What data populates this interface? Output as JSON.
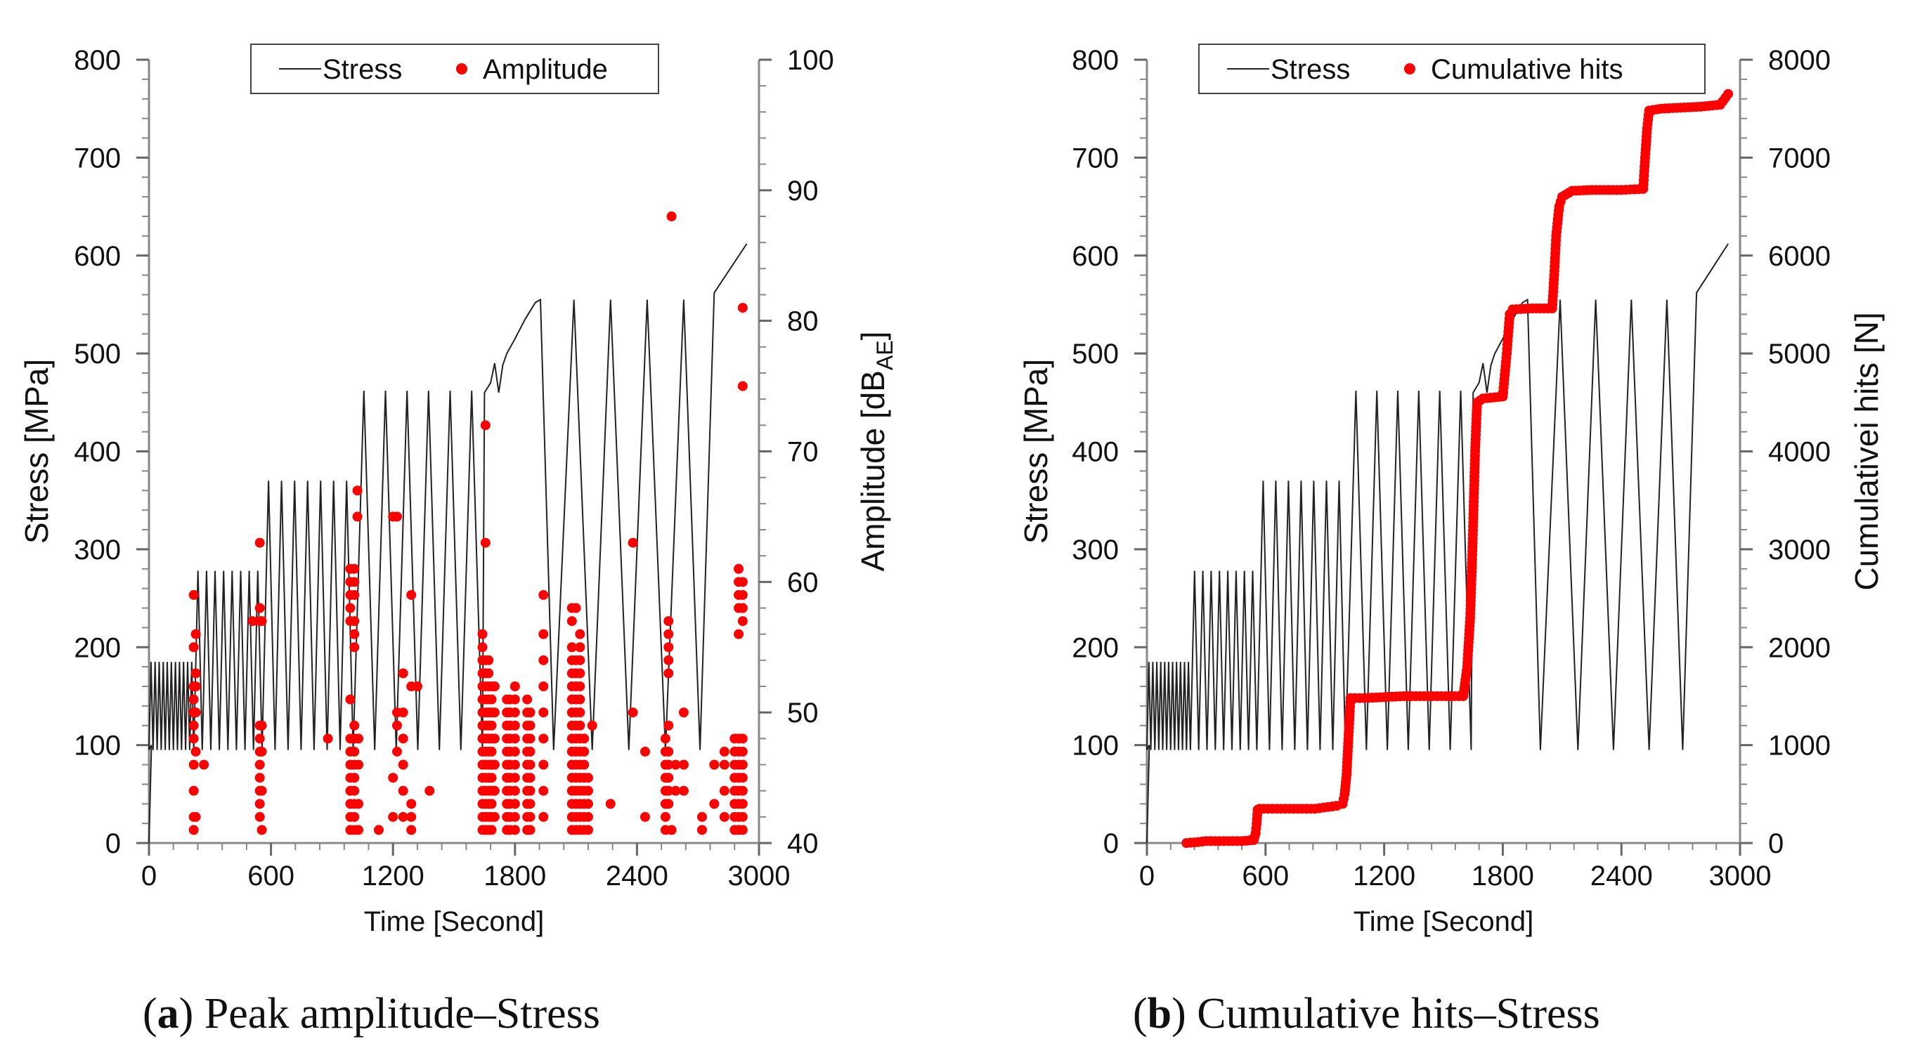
{
  "chart_data": [
    {
      "type": "line+scatter",
      "panel": "a",
      "caption": {
        "open": "(",
        "letter": "a",
        "close": ")",
        "text": " Peak amplitude–Stress"
      },
      "xlabel": "Time [Second]",
      "ylabel": "Stress [MPa]",
      "y2label_main": "Amplitude [dB",
      "y2label_sub": "AE",
      "y2label_end": "]",
      "xlim": [
        0,
        3000
      ],
      "ylim": [
        0,
        800
      ],
      "y2lim": [
        40,
        100
      ],
      "xticks": [
        0,
        600,
        1200,
        1800,
        2400,
        3000
      ],
      "yticks": [
        0,
        100,
        200,
        300,
        400,
        500,
        600,
        700,
        800
      ],
      "y2ticks": [
        40,
        50,
        60,
        70,
        80,
        90,
        100
      ],
      "legend": {
        "position": "top-center",
        "entries": [
          "Stress",
          "Amplitude"
        ]
      },
      "colors": {
        "stress": "#222222",
        "scatter": "#ff0000"
      },
      "stress_blocks": [
        {
          "start": 0,
          "n": 11,
          "period": 20,
          "min": 95,
          "max": 185
        },
        {
          "start": 220,
          "n": 8,
          "period": 42,
          "min": 95,
          "max": 278
        },
        {
          "start": 556,
          "n": 7,
          "period": 64,
          "min": 95,
          "max": 370
        },
        {
          "start": 1004,
          "n": 6,
          "period": 106,
          "min": 95,
          "max": 462
        }
      ],
      "stress_extra": [
        [
          1640,
          95
        ],
        [
          1650,
          460
        ],
        [
          1680,
          470
        ],
        [
          1700,
          490
        ],
        [
          1720,
          460
        ],
        [
          1740,
          488
        ],
        [
          1760,
          500
        ],
        [
          1800,
          515
        ],
        [
          1850,
          535
        ],
        [
          1900,
          552
        ],
        [
          1925,
          555
        ],
        [
          1990,
          95
        ],
        [
          2090,
          555
        ],
        [
          2180,
          95
        ],
        [
          2270,
          555
        ],
        [
          2360,
          95
        ],
        [
          2450,
          555
        ],
        [
          2540,
          95
        ],
        [
          2630,
          555
        ],
        [
          2710,
          95
        ],
        [
          2780,
          562
        ],
        [
          2940,
          612
        ]
      ],
      "amplitude": {
        "columns": [
          {
            "x": 220,
            "values": [
              41,
              42,
              44,
              46,
              48,
              49,
              50,
              51,
              52,
              55,
              59
            ]
          },
          {
            "x": 230,
            "values": [
              42,
              47,
              50,
              52,
              53,
              56
            ]
          },
          {
            "x": 270,
            "values": [
              46
            ]
          },
          {
            "x": 510,
            "values": [
              57
            ]
          },
          {
            "x": 545,
            "values": [
              42,
              43,
              44,
              45,
              46,
              47,
              48,
              49,
              57,
              58,
              63
            ]
          },
          {
            "x": 555,
            "values": [
              41,
              44,
              47,
              49,
              57
            ]
          },
          {
            "x": 880,
            "values": [
              48
            ]
          },
          {
            "x": 990,
            "values": [
              41,
              42,
              43,
              44,
              45,
              46,
              47,
              48,
              51,
              57,
              58,
              59,
              60,
              61
            ]
          },
          {
            "x": 1010,
            "values": [
              41,
              42,
              43,
              44,
              45,
              46,
              47,
              48,
              49,
              55,
              56,
              57,
              59,
              60,
              61
            ]
          },
          {
            "x": 1025,
            "values": [
              65,
              67
            ]
          },
          {
            "x": 1030,
            "values": [
              41,
              43,
              46,
              48
            ]
          },
          {
            "x": 1130,
            "values": [
              41
            ]
          },
          {
            "x": 1200,
            "values": [
              42,
              45,
              65
            ]
          },
          {
            "x": 1220,
            "values": [
              47,
              49,
              50,
              65
            ]
          },
          {
            "x": 1250,
            "values": [
              42,
              44,
              46,
              48,
              50,
              53
            ]
          },
          {
            "x": 1290,
            "values": [
              41,
              42,
              43,
              59,
              52
            ]
          },
          {
            "x": 1320,
            "values": [
              52
            ]
          },
          {
            "x": 1380,
            "values": [
              44
            ]
          },
          {
            "x": 1640,
            "values": [
              41,
              42,
              43,
              44,
              45,
              46,
              47,
              48,
              49,
              50,
              51,
              52,
              53,
              54,
              55,
              56
            ]
          },
          {
            "x": 1655,
            "values": [
              41,
              42,
              43,
              44,
              45,
              46,
              47,
              48,
              49,
              50,
              51,
              52,
              53,
              54,
              72,
              63
            ]
          },
          {
            "x": 1670,
            "values": [
              41,
              42,
              43,
              44,
              45,
              46,
              47,
              48,
              49,
              50,
              51,
              52,
              53,
              54
            ]
          },
          {
            "x": 1685,
            "values": [
              41,
              42,
              43,
              44,
              45,
              46,
              47,
              48,
              49,
              50,
              51,
              52
            ]
          },
          {
            "x": 1700,
            "values": [
              42,
              44,
              46,
              48,
              50,
              52
            ]
          },
          {
            "x": 1760,
            "values": [
              41,
              42,
              43,
              44,
              45,
              46,
              47,
              48,
              49,
              50,
              51
            ]
          },
          {
            "x": 1775,
            "values": [
              41,
              42,
              43,
              44,
              45,
              46,
              47,
              48,
              49,
              50,
              51
            ]
          },
          {
            "x": 1800,
            "values": [
              41,
              42,
              43,
              44,
              45,
              46,
              47,
              48,
              49,
              50,
              51,
              52
            ]
          },
          {
            "x": 1860,
            "values": [
              41,
              42,
              43,
              44,
              45,
              46,
              47,
              48,
              49,
              50,
              51
            ]
          },
          {
            "x": 1875,
            "values": [
              41,
              42,
              43,
              44,
              45,
              46,
              47,
              48,
              49,
              50
            ]
          },
          {
            "x": 1940,
            "values": [
              42,
              44,
              46,
              48,
              50,
              52,
              54,
              56,
              59
            ]
          },
          {
            "x": 2080,
            "values": [
              41,
              42,
              43,
              44,
              45,
              46,
              47,
              48,
              49,
              50,
              51,
              52,
              53,
              54,
              55,
              57,
              58
            ]
          },
          {
            "x": 2100,
            "values": [
              41,
              42,
              43,
              44,
              45,
              46,
              47,
              48,
              49,
              50,
              51,
              52,
              53,
              54,
              58
            ]
          },
          {
            "x": 2120,
            "values": [
              41,
              42,
              43,
              44,
              45,
              46,
              47,
              48,
              49,
              50,
              51,
              52,
              53,
              54,
              55,
              56
            ]
          },
          {
            "x": 2140,
            "values": [
              41,
              42,
              43,
              44,
              45,
              46,
              47,
              48
            ]
          },
          {
            "x": 2160,
            "values": [
              41,
              42,
              43,
              44,
              45
            ]
          },
          {
            "x": 2180,
            "values": [
              49
            ]
          },
          {
            "x": 2270,
            "values": [
              43
            ]
          },
          {
            "x": 2380,
            "values": [
              50,
              63
            ]
          },
          {
            "x": 2440,
            "values": [
              42,
              47
            ]
          },
          {
            "x": 2540,
            "values": [
              41,
              42,
              43,
              44,
              45,
              46,
              47,
              48
            ]
          },
          {
            "x": 2555,
            "values": [
              43,
              44,
              45,
              46,
              47,
              49,
              53,
              54,
              55,
              56,
              57
            ]
          },
          {
            "x": 2570,
            "values": [
              88,
              41
            ]
          },
          {
            "x": 2590,
            "values": [
              44,
              46
            ]
          },
          {
            "x": 2630,
            "values": [
              44,
              46,
              50
            ]
          },
          {
            "x": 2720,
            "values": [
              41,
              42
            ]
          },
          {
            "x": 2780,
            "values": [
              43,
              46
            ]
          },
          {
            "x": 2830,
            "values": [
              42,
              44,
              46,
              47
            ]
          },
          {
            "x": 2880,
            "values": [
              41,
              42,
              43,
              44,
              45,
              46,
              47,
              48
            ]
          },
          {
            "x": 2900,
            "values": [
              41,
              42,
              43,
              44,
              45,
              46,
              47,
              48,
              56,
              58,
              59,
              60,
              61
            ]
          },
          {
            "x": 2920,
            "values": [
              41,
              42,
              43,
              44,
              45,
              46,
              47,
              48,
              57,
              58,
              59,
              60,
              75,
              81
            ]
          }
        ]
      }
    },
    {
      "type": "line+scatter",
      "panel": "b",
      "caption": {
        "open": "(",
        "letter": "b",
        "close": ")",
        "text": " Cumulative hits–Stress"
      },
      "xlabel": "Time [Second]",
      "ylabel": "Stress [MPa]",
      "y2label": "Cumulativei hits [N]",
      "xlim": [
        0,
        3000
      ],
      "ylim": [
        0,
        800
      ],
      "y2lim": [
        0,
        8000
      ],
      "xticks": [
        0,
        600,
        1200,
        1800,
        2400,
        3000
      ],
      "yticks": [
        0,
        100,
        200,
        300,
        400,
        500,
        600,
        700,
        800
      ],
      "y2ticks": [
        0,
        1000,
        2000,
        3000,
        4000,
        5000,
        6000,
        7000,
        8000
      ],
      "legend": {
        "position": "top-center",
        "entries": [
          "Stress",
          "Cumulative hits"
        ]
      },
      "colors": {
        "stress": "#222222",
        "scatter": "#ff0000"
      },
      "cumulative_hits": [
        [
          200,
          0
        ],
        [
          260,
          10
        ],
        [
          300,
          20
        ],
        [
          480,
          20
        ],
        [
          540,
          30
        ],
        [
          550,
          100
        ],
        [
          555,
          200
        ],
        [
          560,
          340
        ],
        [
          570,
          350
        ],
        [
          850,
          350
        ],
        [
          960,
          380
        ],
        [
          990,
          400
        ],
        [
          1000,
          500
        ],
        [
          1010,
          700
        ],
        [
          1015,
          900
        ],
        [
          1020,
          1100
        ],
        [
          1025,
          1300
        ],
        [
          1030,
          1480
        ],
        [
          1100,
          1480
        ],
        [
          1200,
          1490
        ],
        [
          1300,
          1500
        ],
        [
          1380,
          1500
        ],
        [
          1600,
          1500
        ],
        [
          1620,
          1800
        ],
        [
          1635,
          2300
        ],
        [
          1645,
          2900
        ],
        [
          1652,
          3400
        ],
        [
          1660,
          4000
        ],
        [
          1670,
          4500
        ],
        [
          1700,
          4540
        ],
        [
          1800,
          4560
        ],
        [
          1820,
          5000
        ],
        [
          1835,
          5400
        ],
        [
          1850,
          5450
        ],
        [
          1950,
          5460
        ],
        [
          2050,
          5460
        ],
        [
          2060,
          5800
        ],
        [
          2070,
          6200
        ],
        [
          2085,
          6500
        ],
        [
          2100,
          6600
        ],
        [
          2150,
          6660
        ],
        [
          2250,
          6670
        ],
        [
          2400,
          6670
        ],
        [
          2510,
          6680
        ],
        [
          2520,
          7000
        ],
        [
          2530,
          7300
        ],
        [
          2540,
          7480
        ],
        [
          2600,
          7500
        ],
        [
          2700,
          7510
        ],
        [
          2800,
          7520
        ],
        [
          2900,
          7540
        ],
        [
          2940,
          7650
        ]
      ]
    }
  ]
}
